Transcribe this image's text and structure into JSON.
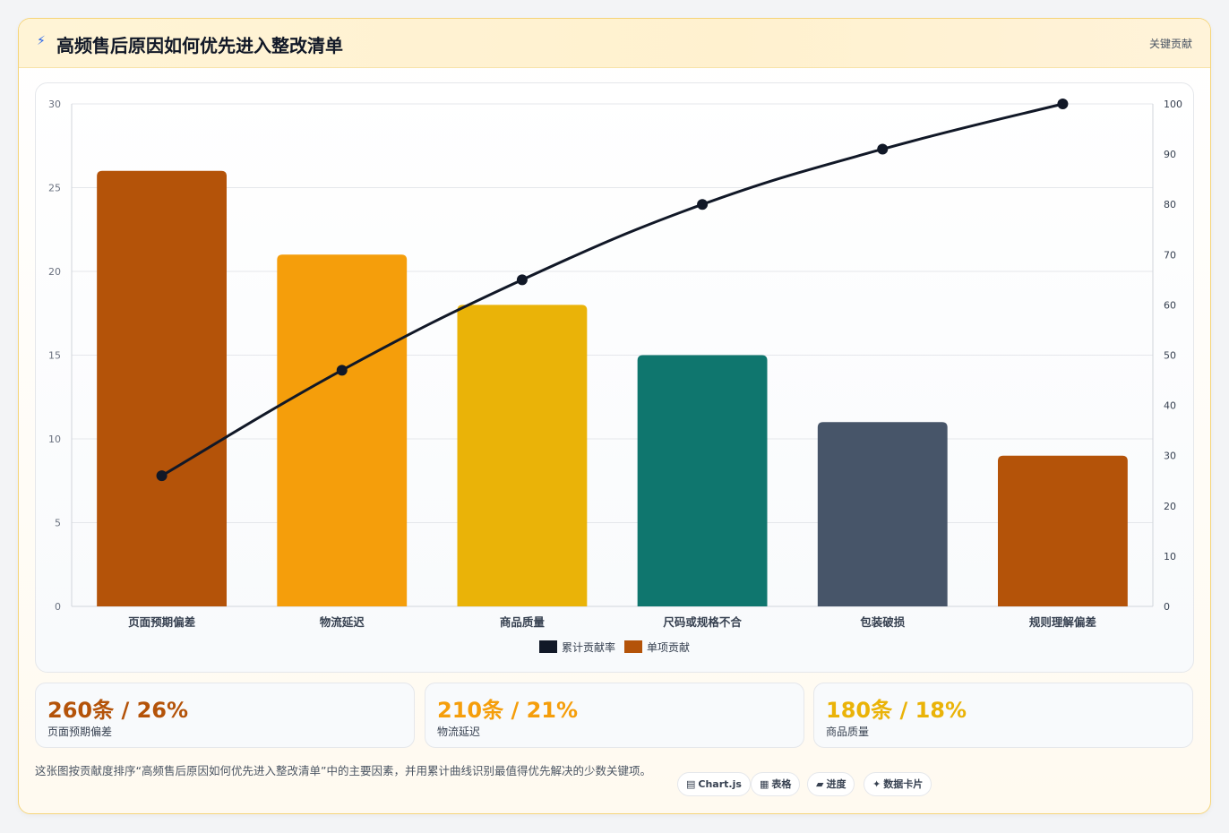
{
  "header": {
    "title": "高频售后原因如何优先进入整改清单",
    "tag": "关键贡献",
    "icon": "lightning-icon"
  },
  "chart_data": {
    "type": "bar",
    "categories": [
      "页面预期偏差",
      "物流延迟",
      "商品质量",
      "尺码或规格不合",
      "包装破损",
      "规则理解偏差"
    ],
    "series": [
      {
        "name": "单项贡献",
        "type": "bar",
        "axis": "left",
        "values": [
          26,
          21,
          18,
          15,
          11,
          9
        ],
        "colors": [
          "#b45309",
          "#f59e0b",
          "#eab308",
          "#0f766e",
          "#475569",
          "#b45309"
        ]
      },
      {
        "name": "累计贡献率",
        "type": "line",
        "axis": "right",
        "values": [
          26,
          47,
          65,
          80,
          91,
          100
        ],
        "color": "#111827"
      }
    ],
    "y_left": {
      "min": 0,
      "max": 30,
      "ticks": [
        0,
        5,
        10,
        15,
        20,
        25,
        30
      ]
    },
    "y_right": {
      "min": 0,
      "max": 100,
      "ticks": [
        0,
        10,
        20,
        30,
        40,
        50,
        60,
        70,
        80,
        90,
        100
      ]
    },
    "legend": [
      "累计贡献率",
      "单项贡献"
    ],
    "legend_position": "bottom",
    "grid": true
  },
  "stats": [
    {
      "value": "260条 / 26%",
      "label": "页面预期偏差",
      "color": "#b45309"
    },
    {
      "value": "210条 / 21%",
      "label": "物流延迟",
      "color": "#f59e0b"
    },
    {
      "value": "180条 / 18%",
      "label": "商品质量",
      "color": "#eab308"
    }
  ],
  "footer": {
    "description": "这张图按贡献度排序“高频售后原因如何优先进入整改清单”中的主要因素，并用累计曲线识别最值得优先解决的少数关键项。",
    "chips": [
      {
        "icon": "▤",
        "label": "Chart.js"
      },
      {
        "icon": "▦",
        "label": "表格"
      },
      {
        "icon": "▰",
        "label": "进度"
      },
      {
        "icon": "✦",
        "label": "数据卡片"
      }
    ]
  }
}
